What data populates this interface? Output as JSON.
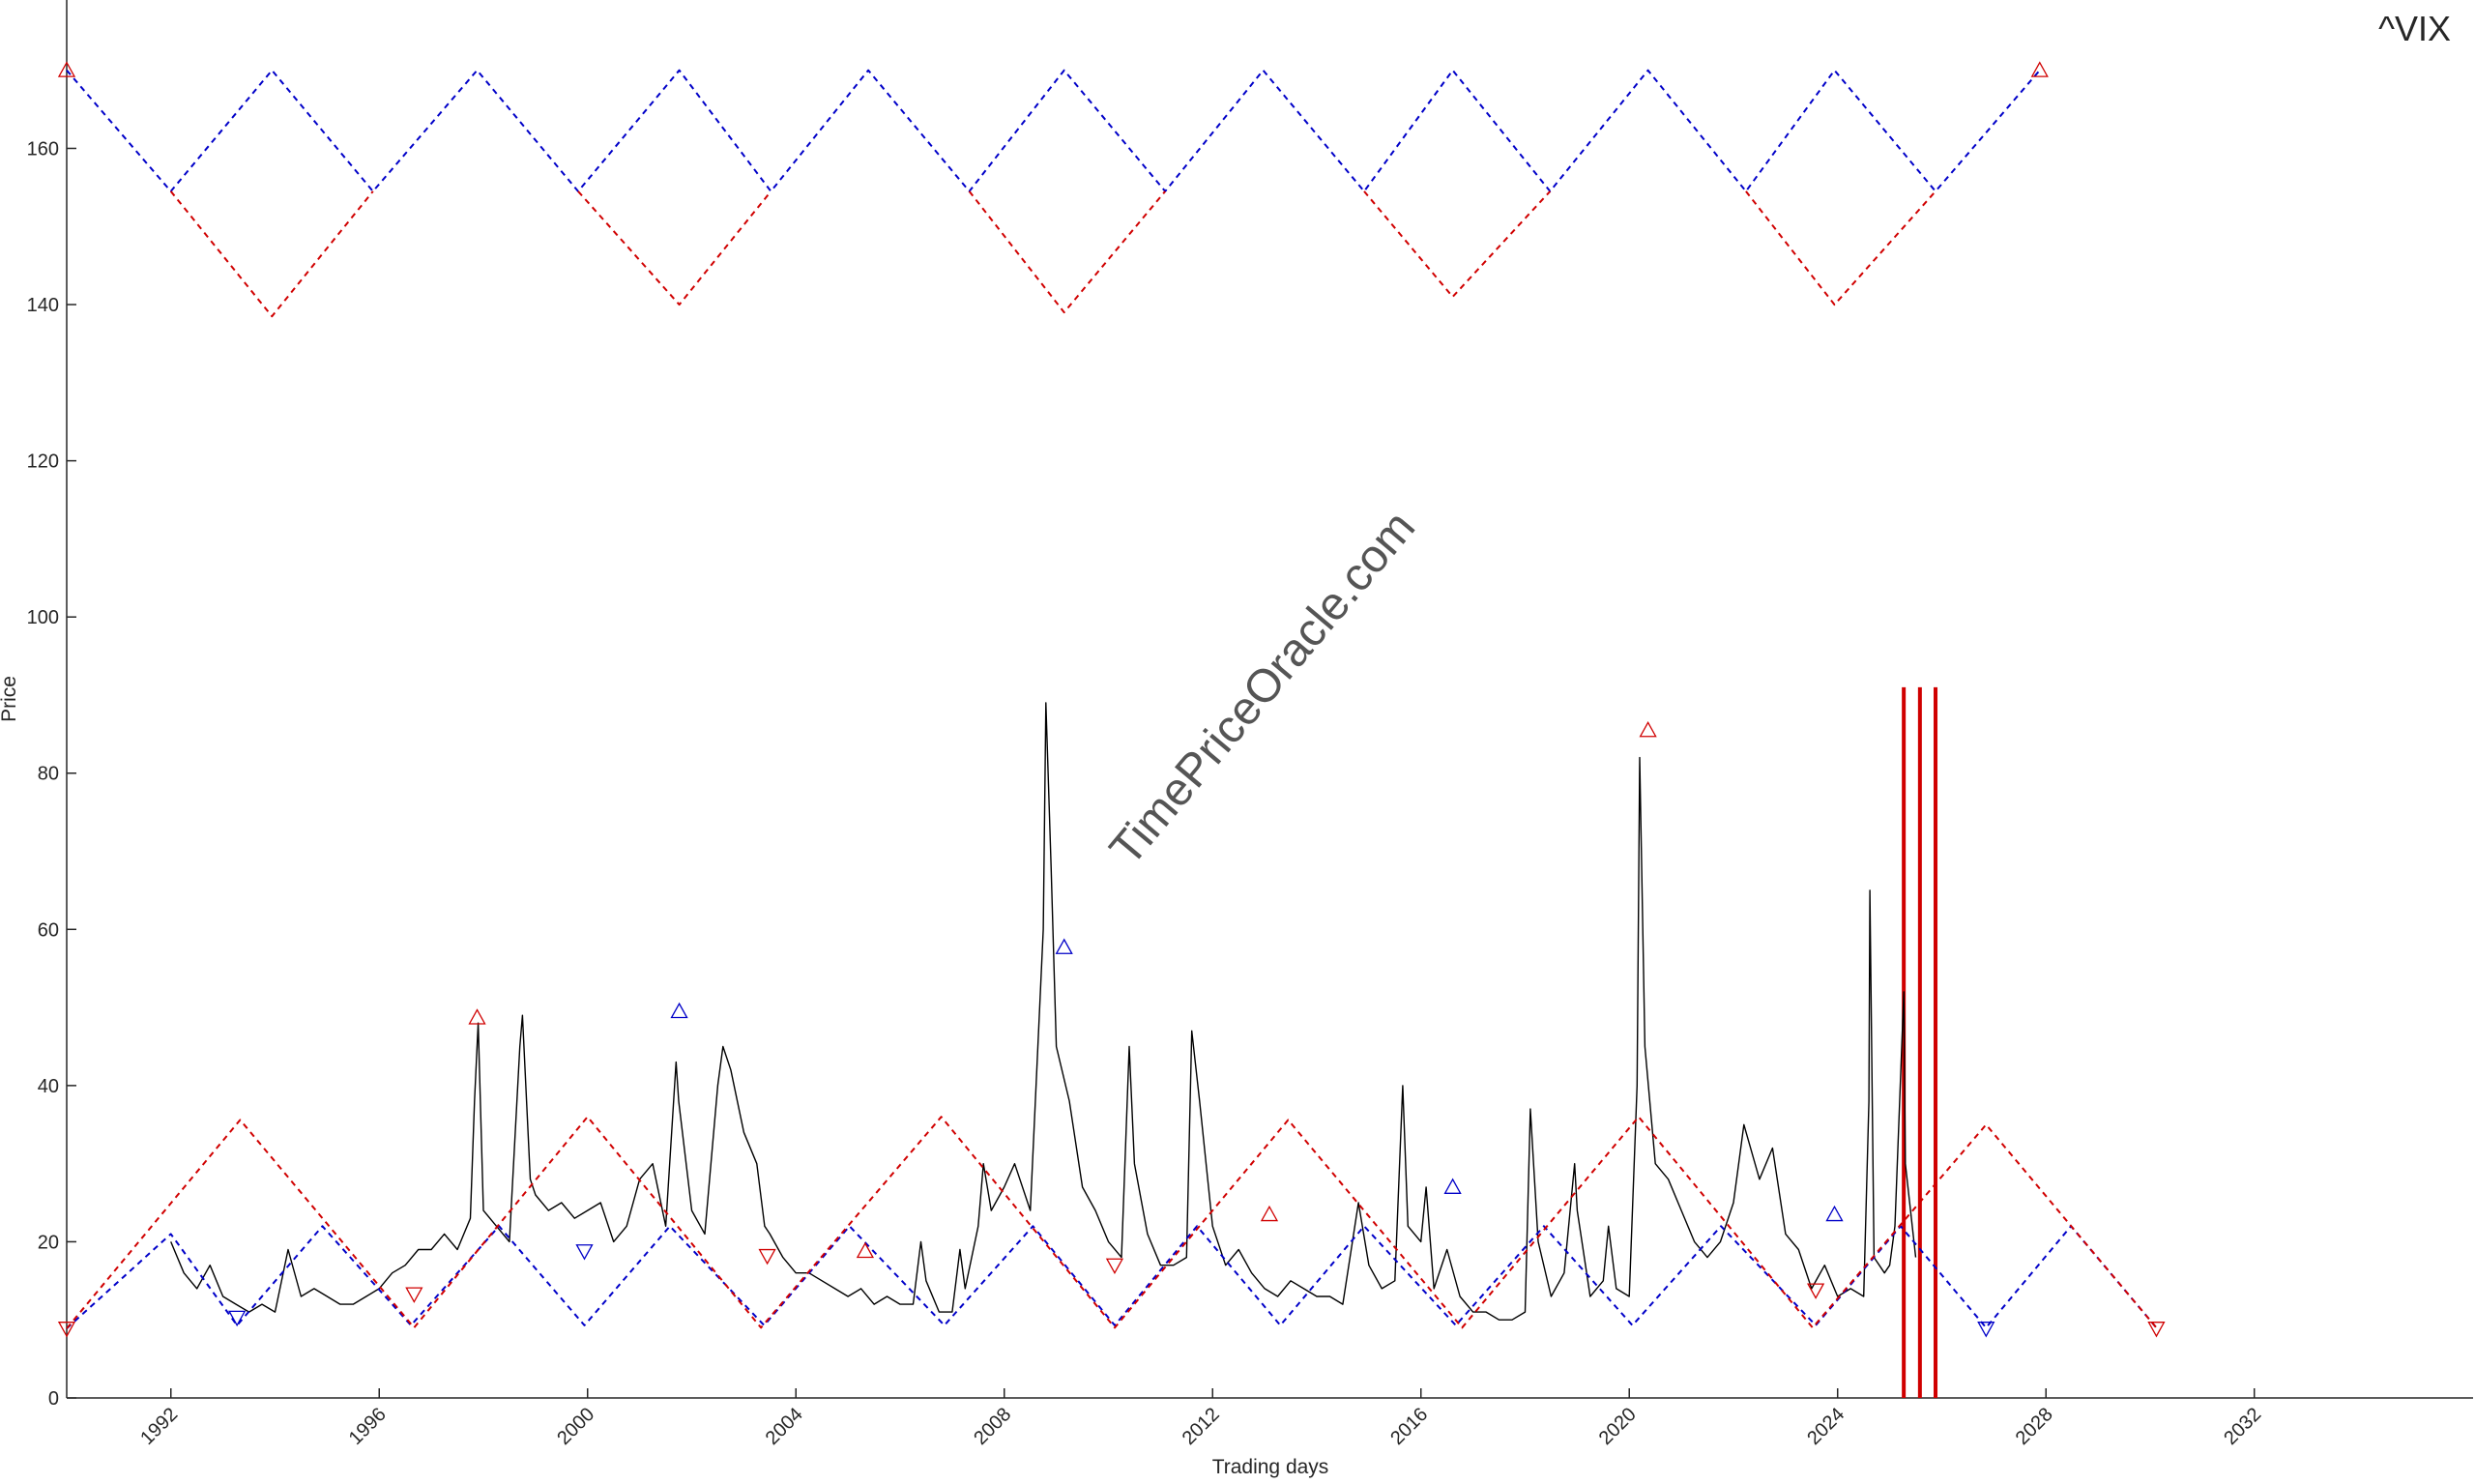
{
  "chart_data": {
    "type": "line",
    "title": "^VIX",
    "watermark": "TimePriceOracle.com",
    "xlabel": "Trading days",
    "ylabel": "Price",
    "xlim": [
      1990,
      2036.2
    ],
    "ylim": [
      0,
      179
    ],
    "xticks": [
      1992,
      1996,
      2000,
      2004,
      2008,
      2012,
      2016,
      2020,
      2024,
      2028,
      2032
    ],
    "yticks": [
      0,
      20,
      40,
      60,
      80,
      100,
      120,
      140,
      160
    ],
    "series": [
      {
        "color": "#000000",
        "style": "solid",
        "x": [
          1992.0,
          1992.25,
          1992.5,
          1992.75,
          1993.0,
          1993.25,
          1993.5,
          1993.75,
          1994.0,
          1994.25,
          1994.5,
          1994.75,
          1995.0,
          1995.25,
          1995.5,
          1995.75,
          1996.0,
          1996.25,
          1996.5,
          1996.75,
          1997.0,
          1997.25,
          1997.5,
          1997.75,
          1997.83,
          1997.9,
          1998.0,
          1998.25,
          1998.5,
          1998.7,
          1998.75,
          1998.9,
          1999.0,
          1999.25,
          1999.5,
          1999.75,
          2000.0,
          2000.25,
          2000.5,
          2000.75,
          2001.0,
          2001.25,
          2001.5,
          2001.7,
          2001.75,
          2002.0,
          2002.25,
          2002.5,
          2002.6,
          2002.75,
          2003.0,
          2003.25,
          2003.4,
          2003.5,
          2003.75,
          2004.0,
          2004.25,
          2004.5,
          2004.75,
          2005.0,
          2005.25,
          2005.5,
          2005.75,
          2006.0,
          2006.25,
          2006.4,
          2006.5,
          2006.75,
          2007.0,
          2007.15,
          2007.25,
          2007.5,
          2007.6,
          2007.75,
          2008.0,
          2008.2,
          2008.5,
          2008.75,
          2008.8,
          2008.9,
          2009.0,
          2009.25,
          2009.5,
          2009.75,
          2010.0,
          2010.25,
          2010.4,
          2010.5,
          2010.75,
          2011.0,
          2011.25,
          2011.5,
          2011.6,
          2011.75,
          2012.0,
          2012.25,
          2012.5,
          2012.75,
          2013.0,
          2013.25,
          2013.5,
          2013.75,
          2014.0,
          2014.25,
          2014.5,
          2014.8,
          2015.0,
          2015.25,
          2015.5,
          2015.65,
          2015.75,
          2016.0,
          2016.1,
          2016.25,
          2016.5,
          2016.75,
          2017.0,
          2017.25,
          2017.5,
          2017.75,
          2018.0,
          2018.1,
          2018.25,
          2018.5,
          2018.75,
          2018.95,
          2019.0,
          2019.25,
          2019.5,
          2019.6,
          2019.75,
          2020.0,
          2020.15,
          2020.2,
          2020.3,
          2020.5,
          2020.75,
          2021.0,
          2021.25,
          2021.5,
          2021.75,
          2022.0,
          2022.2,
          2022.5,
          2022.75,
          2023.0,
          2023.25,
          2023.5,
          2023.75,
          2024.0,
          2024.25,
          2024.5,
          2024.6,
          2024.62,
          2024.7,
          2024.9,
          2025.0,
          2025.1,
          2025.27,
          2025.3,
          2025.5
        ],
        "values": [
          20,
          16,
          14,
          17,
          13,
          12,
          11,
          12,
          11,
          19,
          13,
          14,
          13,
          12,
          12,
          13,
          14,
          16,
          17,
          19,
          19,
          21,
          19,
          23,
          38,
          48,
          24,
          22,
          20,
          45,
          49,
          28,
          26,
          24,
          25,
          23,
          24,
          25,
          20,
          22,
          28,
          30,
          22,
          43,
          38,
          24,
          21,
          40,
          45,
          42,
          34,
          30,
          22,
          21,
          18,
          16,
          16,
          15,
          14,
          13,
          14,
          12,
          13,
          12,
          12,
          20,
          15,
          11,
          11,
          19,
          14,
          22,
          30,
          24,
          27,
          30,
          24,
          60,
          89,
          68,
          45,
          38,
          27,
          24,
          20,
          18,
          45,
          30,
          21,
          17,
          17,
          18,
          47,
          38,
          22,
          17,
          19,
          16,
          14,
          13,
          15,
          14,
          13,
          13,
          12,
          25,
          17,
          14,
          15,
          40,
          22,
          20,
          27,
          14,
          19,
          13,
          11,
          11,
          10,
          10,
          11,
          37,
          20,
          13,
          16,
          30,
          24,
          13,
          15,
          22,
          14,
          13,
          40,
          82,
          45,
          30,
          28,
          24,
          20,
          18,
          20,
          25,
          35,
          28,
          32,
          21,
          19,
          14,
          17,
          13,
          14,
          13,
          38,
          65,
          18,
          16,
          17,
          22,
          52,
          30,
          18
        ]
      },
      {
        "color": "#0000c8",
        "style": "dashed",
        "x": [
          1990,
          1992,
          1993.94,
          1995.88,
          1997.88,
          1999.82,
          2001.76,
          2003.52,
          2005.39,
          2007.33,
          2009.15,
          2011.09,
          2012.97,
          2014.91,
          2016.61,
          2018.48,
          2020.36,
          2022.24,
          2023.94,
          2025.88,
          2027.88
        ],
        "values": [
          170,
          154.5,
          170,
          154.5,
          170,
          154.5,
          170,
          154.5,
          170,
          154.5,
          170,
          154.5,
          170,
          154.5,
          170,
          154.5,
          170,
          154.5,
          170,
          154.5,
          170
        ]
      },
      {
        "color": "#d00000",
        "style": "dashed",
        "x": [
          1992,
          1993.94,
          1995.88,
          null,
          1999.82,
          2001.76,
          2003.52,
          null,
          2007.33,
          2009.15,
          2011.09,
          null,
          2014.91,
          2016.61,
          2018.48,
          null,
          2022.24,
          2023.94,
          2025.88
        ],
        "values": [
          154.5,
          138.5,
          154.5,
          null,
          154.5,
          140,
          154.5,
          null,
          154.5,
          139,
          154.5,
          null,
          154.5,
          141,
          154.5,
          null,
          154.5,
          140,
          154.5
        ]
      },
      {
        "color": "#0000c8",
        "style": "dashed",
        "x": [
          1990,
          1992,
          1993.27,
          1994.91,
          1996.61,
          1998.3,
          1999.94,
          2001.58,
          2003.39,
          2005.03,
          2006.85,
          2008.55,
          2010.12,
          2011.7,
          2013.3,
          2014.91,
          2016.67,
          2018.36,
          2020.06,
          2021.76,
          2023.58,
          2025.21,
          2026.85,
          2028.48,
          2030.12
        ],
        "values": [
          8.9,
          21,
          9.3,
          22,
          9.3,
          22,
          9.3,
          22,
          9.3,
          22,
          9.3,
          22,
          9.3,
          22,
          9.3,
          22,
          9.3,
          22,
          9.3,
          22,
          9.3,
          22,
          9,
          22,
          9
        ]
      },
      {
        "color": "#d00000",
        "style": "dashed",
        "x": [
          1990,
          1993.33,
          1996.67,
          2000.0,
          2003.33,
          2006.79,
          2010.12,
          2013.45,
          2016.79,
          2020.18,
          2023.52,
          2026.85,
          2030.12
        ],
        "values": [
          8.9,
          35.6,
          9,
          36,
          9,
          36,
          9,
          35.6,
          9,
          36,
          9,
          35,
          9
        ]
      },
      {
        "color": "#d00000",
        "marker": "triangle-up",
        "x": [
          1990,
          2027.88,
          1997.88,
          2020.36,
          2013.09,
          2005.33
        ],
        "values": [
          170,
          170,
          48.7,
          85.5,
          23.5,
          18.8
        ]
      },
      {
        "color": "#d00000",
        "marker": "triangle-down",
        "x": [
          1990,
          2030.12,
          1996.67,
          2010.12,
          2003.45,
          2023.58
        ],
        "values": [
          8.9,
          8.9,
          13.3,
          17,
          18.2,
          13.8
        ]
      },
      {
        "color": "#0000c8",
        "marker": "triangle-up",
        "x": [
          2001.76,
          2009.15,
          2016.61,
          2023.94
        ],
        "values": [
          49.5,
          57.7,
          27,
          23.5
        ]
      },
      {
        "color": "#0000c8",
        "marker": "triangle-down",
        "x": [
          2026.85,
          1999.94,
          1993.27
        ],
        "values": [
          8.9,
          18.8,
          10.3
        ]
      }
    ],
    "vlines": {
      "x": [
        2025.27,
        2025.58,
        2025.88
      ],
      "top": 91,
      "color": "#d00000"
    }
  }
}
